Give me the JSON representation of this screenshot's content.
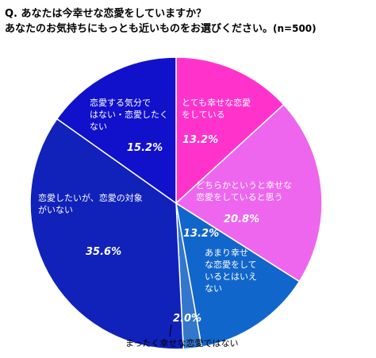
{
  "question": {
    "line1": "Q. あなたは今幸せな恋愛をしていますか？",
    "line2": "あなたのお気持ちにもっとも近いものをお選びください。",
    "n": "(n=500)"
  },
  "chart_data": {
    "type": "pie",
    "title": "Q. あなたは今幸せな恋愛をしていますか？ あなたのお気持ちにもっとも近いものをお選びください。(n=500)",
    "slices": [
      {
        "label_lines": [
          "とても幸せな恋愛",
          "をしている"
        ],
        "value": 13.2,
        "pct_label": "13.2%",
        "color": "#ff33cc"
      },
      {
        "label_lines": [
          "どちらかというと幸せな",
          "恋愛をしていると思う"
        ],
        "value": 20.8,
        "pct_label": "20.8%",
        "color": "#ee66ee"
      },
      {
        "label_lines": [
          "あまり幸せ",
          "な恋愛をして",
          "いるとはいえ",
          "ない"
        ],
        "value": 13.2,
        "pct_label": "13.2%",
        "color": "#1166cc"
      },
      {
        "label_lines": [
          "まったく幸せな恋愛ではない"
        ],
        "value": 2.0,
        "pct_label": "2.0%",
        "color": "#3377cc"
      },
      {
        "label_lines": [
          "恋愛したいが、恋愛の対象",
          "がいない"
        ],
        "value": 35.6,
        "pct_label": "35.6%",
        "color": "#1122bb"
      },
      {
        "label_lines": [
          "恋愛する気分で",
          "はない・恋愛したく",
          "ない"
        ],
        "value": 15.2,
        "pct_label": "15.2%",
        "color": "#1111cc"
      }
    ]
  }
}
